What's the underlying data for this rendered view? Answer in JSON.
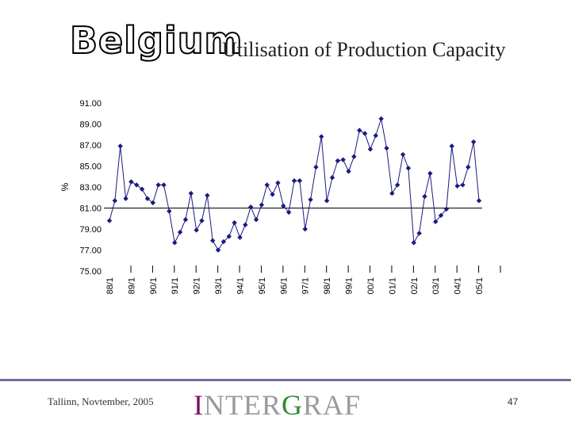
{
  "header": {
    "country": "Belgium",
    "title": "Utilisation of Production Capacity"
  },
  "footer": {
    "location_date": "Tallinn, Novtember, 2005",
    "brand_prefix": "I",
    "brand_part2": "NTER",
    "brand_part3": "G",
    "brand_part4": "RAF",
    "page_number": "47"
  },
  "colors": {
    "series": "#1a1a80",
    "brand_highlight": "#7a1060",
    "brand_g": "#2e8b2e",
    "footer_line": "#7b6aa0"
  },
  "chart_data": {
    "type": "line",
    "title": "",
    "xlabel": "",
    "ylabel": "%",
    "ylim": [
      75,
      91
    ],
    "yticks": [
      "75.00",
      "77.00",
      "79.00",
      "81.00",
      "83.00",
      "85.00",
      "87.00",
      "89.00",
      "91.00"
    ],
    "reference_line": 81,
    "x_tick_labels": [
      "88/1",
      "89/1",
      "90/1",
      "91/1",
      "92/1",
      "93/1",
      "94/1",
      "95/1",
      "96/1",
      "97/1",
      "98/1",
      "99/1",
      "00/1",
      "01/1",
      "02/1",
      "03/1",
      "04/1",
      "05/1"
    ],
    "points_per_year": 4,
    "series": [
      {
        "name": "Utilisation of Production Capacity",
        "values": [
          79.8,
          81.7,
          86.9,
          81.9,
          83.5,
          83.2,
          82.8,
          81.9,
          81.5,
          83.2,
          83.2,
          80.7,
          77.7,
          78.7,
          79.9,
          82.4,
          78.9,
          79.8,
          82.2,
          77.9,
          77.0,
          77.8,
          78.3,
          79.6,
          78.2,
          79.4,
          81.1,
          79.9,
          81.3,
          83.2,
          82.3,
          83.4,
          81.2,
          80.6,
          83.6,
          83.6,
          79.0,
          81.8,
          84.9,
          87.8,
          81.7,
          83.9,
          85.5,
          85.6,
          84.5,
          85.9,
          88.4,
          88.1,
          86.6,
          87.9,
          89.5,
          86.7,
          82.4,
          83.2,
          86.1,
          84.8,
          77.7,
          78.6,
          82.1,
          84.3,
          79.7,
          80.3,
          80.9,
          86.9,
          83.1,
          83.2,
          84.9,
          87.3,
          81.7
        ]
      }
    ]
  }
}
